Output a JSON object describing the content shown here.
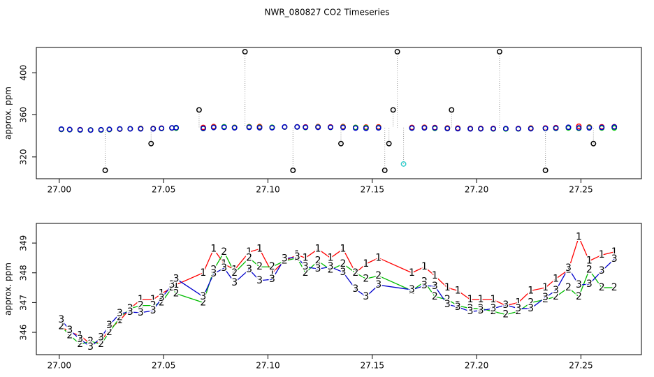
{
  "chart_data": [
    {
      "type": "scatter",
      "title": "NWR_080827  CO2 Timeseries",
      "y_label": "approx. ppm",
      "xlim": [
        26.989,
        27.279
      ],
      "ylim": [
        299.3,
        424
      ],
      "xticks": [
        {
          "value": 27,
          "label": "27.00"
        },
        {
          "value": 27.05,
          "label": "27.05"
        },
        {
          "value": 27.1,
          "label": "27.10"
        },
        {
          "value": 27.15,
          "label": "27.15"
        },
        {
          "value": 27.2,
          "label": "27.20"
        },
        {
          "value": 27.25,
          "label": "27.25"
        }
      ],
      "yticks": [
        320,
        360,
        400
      ],
      "x": [
        27.001,
        27.005,
        27.01,
        27.015,
        27.02,
        27.024,
        27.029,
        27.034,
        27.039,
        27.045,
        27.049,
        27.054,
        27.056,
        27.069,
        27.074,
        27.079,
        27.084,
        27.091,
        27.096,
        27.102,
        27.108,
        27.114,
        27.118,
        27.124,
        27.13,
        27.136,
        27.142,
        27.147,
        27.153,
        27.169,
        27.175,
        27.18,
        27.186,
        27.191,
        27.197,
        27.202,
        27.208,
        27.214,
        27.22,
        27.226,
        27.233,
        27.238,
        27.244,
        27.249,
        27.254,
        27.26,
        27.266
      ],
      "series": [
        {
          "color": "#ff0000",
          "values": [
            346.2,
            346.0,
            345.9,
            345.6,
            345.7,
            346.1,
            346.4,
            346.8,
            347.1,
            347.1,
            347.3,
            347.5,
            347.6,
            348.0,
            348.8,
            348.3,
            348.1,
            348.7,
            348.8,
            348.0,
            348.4,
            348.6,
            348.5,
            348.8,
            348.5,
            348.8,
            348.0,
            348.3,
            348.5,
            348.0,
            348.2,
            347.9,
            347.5,
            347.4,
            347.1,
            347.1,
            347.1,
            346.9,
            347.0,
            347.4,
            347.5,
            347.8,
            348.1,
            349.2,
            348.4,
            348.6,
            348.7
          ]
        },
        {
          "color": "#00cc00",
          "values": [
            346.2,
            345.9,
            345.6,
            345.7,
            345.6,
            346.0,
            346.5,
            346.8,
            346.9,
            346.9,
            347.0,
            347.5,
            347.3,
            347.0,
            348.1,
            348.7,
            348.0,
            348.5,
            348.2,
            348.2,
            348.4,
            348.5,
            348.0,
            348.4,
            348.1,
            348.3,
            348.0,
            347.8,
            347.9,
            347.4,
            347.7,
            347.2,
            347.1,
            346.9,
            346.8,
            346.8,
            346.7,
            346.6,
            346.7,
            347.0,
            347.1,
            347.2,
            347.5,
            347.2,
            348.1,
            347.5,
            347.5
          ]
        },
        {
          "color": "#0000cc",
          "values": [
            346.42,
            346.07,
            345.77,
            345.51,
            345.82,
            346.24,
            346.63,
            346.68,
            346.66,
            346.73,
            347.15,
            347.59,
            347.8,
            347.2,
            347.97,
            348.16,
            347.67,
            348.11,
            347.74,
            347.78,
            348.48,
            348.53,
            348.2,
            348.13,
            348.2,
            348.02,
            347.45,
            347.2,
            347.59,
            347.43,
            347.57,
            347.55,
            346.94,
            346.85,
            346.7,
            346.73,
            346.8,
            346.92,
            346.8,
            346.8,
            347.17,
            347.41,
            348.16,
            347.59,
            347.62,
            348.06,
            348.46
          ]
        },
        {
          "color": "#000000",
          "x": [
            27.022,
            27.044,
            27.067,
            27.089,
            27.112,
            27.135,
            27.156,
            27.158,
            27.16,
            27.162,
            27.188,
            27.211,
            27.233,
            27.256
          ],
          "values": [
            307.3,
            332.7,
            364.7,
            420,
            307.3,
            332.7,
            307.3,
            332.7,
            364.7,
            420,
            364.7,
            420,
            307.3,
            332.7
          ]
        },
        {
          "color": "#33cccc",
          "x": [
            27.165
          ],
          "values": [
            313.3
          ]
        }
      ]
    },
    {
      "type": "line",
      "y_label": "approx. ppm",
      "xlim": [
        26.989,
        27.279
      ],
      "ylim": [
        345.25,
        349.66
      ],
      "xticks": [
        {
          "value": 27,
          "label": "27.00"
        },
        {
          "value": 27.05,
          "label": "27.05"
        },
        {
          "value": 27.1,
          "label": "27.10"
        },
        {
          "value": 27.15,
          "label": "27.15"
        },
        {
          "value": 27.2,
          "label": "27.20"
        },
        {
          "value": 27.25,
          "label": "27.25"
        }
      ],
      "yticks": [
        346,
        347,
        348,
        349
      ],
      "x": [
        27.001,
        27.005,
        27.01,
        27.015,
        27.02,
        27.024,
        27.029,
        27.034,
        27.039,
        27.045,
        27.049,
        27.054,
        27.056,
        27.069,
        27.074,
        27.079,
        27.084,
        27.091,
        27.096,
        27.102,
        27.108,
        27.114,
        27.118,
        27.124,
        27.13,
        27.136,
        27.142,
        27.147,
        27.153,
        27.169,
        27.175,
        27.18,
        27.186,
        27.191,
        27.197,
        27.202,
        27.208,
        27.214,
        27.22,
        27.226,
        27.233,
        27.238,
        27.244,
        27.249,
        27.254,
        27.26,
        27.266
      ],
      "series": [
        {
          "name": "1",
          "color": "#ff0000",
          "values": [
            346.2,
            346.0,
            345.9,
            345.6,
            345.7,
            346.1,
            346.4,
            346.8,
            347.1,
            347.1,
            347.3,
            347.5,
            347.6,
            348.0,
            348.8,
            348.3,
            348.1,
            348.7,
            348.8,
            348.0,
            348.4,
            348.6,
            348.5,
            348.8,
            348.5,
            348.8,
            348.0,
            348.3,
            348.5,
            348.0,
            348.2,
            347.9,
            347.5,
            347.4,
            347.1,
            347.1,
            347.1,
            346.9,
            347.0,
            347.4,
            347.5,
            347.8,
            348.1,
            349.2,
            348.4,
            348.6,
            348.7
          ]
        },
        {
          "name": "2",
          "color": "#00bb00",
          "values": [
            346.2,
            345.9,
            345.6,
            345.7,
            345.6,
            346.0,
            346.5,
            346.8,
            346.9,
            346.9,
            347.0,
            347.5,
            347.3,
            347.0,
            348.1,
            348.7,
            348.0,
            348.5,
            348.2,
            348.2,
            348.4,
            348.5,
            348.0,
            348.4,
            348.1,
            348.3,
            348.0,
            347.8,
            347.9,
            347.4,
            347.7,
            347.2,
            347.1,
            346.9,
            346.8,
            346.8,
            346.7,
            346.6,
            346.7,
            347.0,
            347.1,
            347.2,
            347.5,
            347.2,
            348.1,
            347.5,
            347.5
          ]
        },
        {
          "name": "3",
          "color": "#0000cc",
          "values": [
            346.42,
            346.07,
            345.77,
            345.51,
            345.82,
            346.24,
            346.63,
            346.68,
            346.66,
            346.73,
            347.15,
            347.59,
            347.8,
            347.2,
            347.97,
            348.16,
            347.67,
            348.11,
            347.74,
            347.78,
            348.48,
            348.53,
            348.2,
            348.13,
            348.2,
            348.02,
            347.45,
            347.2,
            347.59,
            347.43,
            347.57,
            347.55,
            346.94,
            346.85,
            346.7,
            346.73,
            346.8,
            346.92,
            346.8,
            346.8,
            347.17,
            347.41,
            348.16,
            347.59,
            347.62,
            348.06,
            348.46
          ]
        }
      ]
    }
  ]
}
